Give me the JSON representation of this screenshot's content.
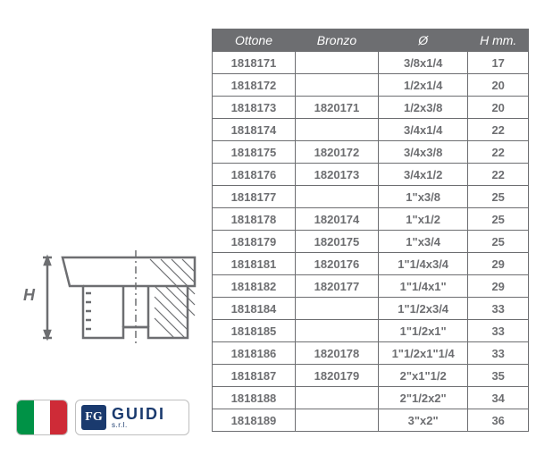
{
  "colors": {
    "header_bg": "#6d6e71",
    "header_text": "#ffffff",
    "cell_bg": "#ffffff",
    "cell_text": "#6d6e71",
    "border": "#6d6e71",
    "diagram_stroke": "#6d6e71",
    "diagram_hatch": "#6d6e71",
    "flag_green": "#009246",
    "flag_white": "#ffffff",
    "flag_red": "#ce2b37",
    "logo_box_bg": "#1a3a6e",
    "logo_box_text": "#ffffff",
    "logo_text_color": "#1a3a6e"
  },
  "table": {
    "headers": [
      "Ottone",
      "Bronzo",
      "Ø",
      "H mm."
    ],
    "rows": [
      [
        "1818171",
        "",
        "3/8x1/4",
        "17"
      ],
      [
        "1818172",
        "",
        "1/2x1/4",
        "20"
      ],
      [
        "1818173",
        "1820171",
        "1/2x3/8",
        "20"
      ],
      [
        "1818174",
        "",
        "3/4x1/4",
        "22"
      ],
      [
        "1818175",
        "1820172",
        "3/4x3/8",
        "22"
      ],
      [
        "1818176",
        "1820173",
        "3/4x1/2",
        "22"
      ],
      [
        "1818177",
        "",
        "1\"x3/8",
        "25"
      ],
      [
        "1818178",
        "1820174",
        "1\"x1/2",
        "25"
      ],
      [
        "1818179",
        "1820175",
        "1\"x3/4",
        "25"
      ],
      [
        "1818181",
        "1820176",
        "1\"1/4x3/4",
        "29"
      ],
      [
        "1818182",
        "1820177",
        "1\"1/4x1\"",
        "29"
      ],
      [
        "1818184",
        "",
        "1\"1/2x3/4",
        "33"
      ],
      [
        "1818185",
        "",
        "1\"1/2x1\"",
        "33"
      ],
      [
        "1818186",
        "1820178",
        "1\"1/2x1\"1/4",
        "33"
      ],
      [
        "1818187",
        "1820179",
        "2\"x1\"1/2",
        "35"
      ],
      [
        "1818188",
        "",
        "2\"1/2x2\"",
        "34"
      ],
      [
        "1818189",
        "",
        "3\"x2\"",
        "36"
      ]
    ]
  },
  "diagram": {
    "label": "H"
  },
  "logo": {
    "monogram": "FG",
    "name": "GUIDI",
    "sub": "s.r.l."
  }
}
